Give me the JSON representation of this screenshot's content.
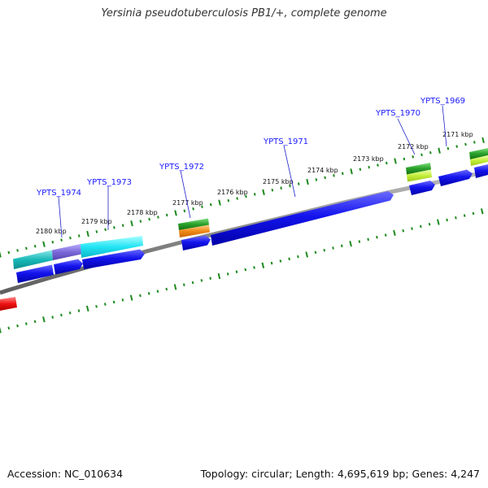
{
  "title": "Yersinia pseudotuberculosis PB1/+, complete genome",
  "footer": {
    "accession": "Accession: NC_010634",
    "info": "Topology: circular; Length: 4,695,619 bp; Genes: 4,247"
  },
  "scale_ticks": [
    {
      "label": "2171 kbp"
    },
    {
      "label": "2172 kbp"
    },
    {
      "label": "2173 kbp"
    },
    {
      "label": "2174 kbp"
    },
    {
      "label": "2175 kbp"
    },
    {
      "label": "2176 kbp"
    },
    {
      "label": "2177 kbp"
    },
    {
      "label": "2178 kbp"
    },
    {
      "label": "2179 kbp"
    },
    {
      "label": "2180 kbp"
    }
  ],
  "gene_labels": [
    {
      "name": "YPTS_1969"
    },
    {
      "name": "YPTS_1970"
    },
    {
      "name": "YPTS_1971"
    },
    {
      "name": "YPTS_1972"
    },
    {
      "name": "YPTS_1973"
    },
    {
      "name": "YPTS_1974"
    }
  ],
  "colors": {
    "gene": "#1010e0",
    "backbone": "#888888",
    "ticks": "#1e8a1e",
    "cog_cyan": "#22d8e8",
    "cog_purple": "#7f6fd8",
    "cog_teal": "#1abcbc",
    "cog_green": "#2ea02e",
    "cog_orange": "#f08a18",
    "cog_lime": "#c8f040",
    "cog_red": "#ee1111"
  }
}
